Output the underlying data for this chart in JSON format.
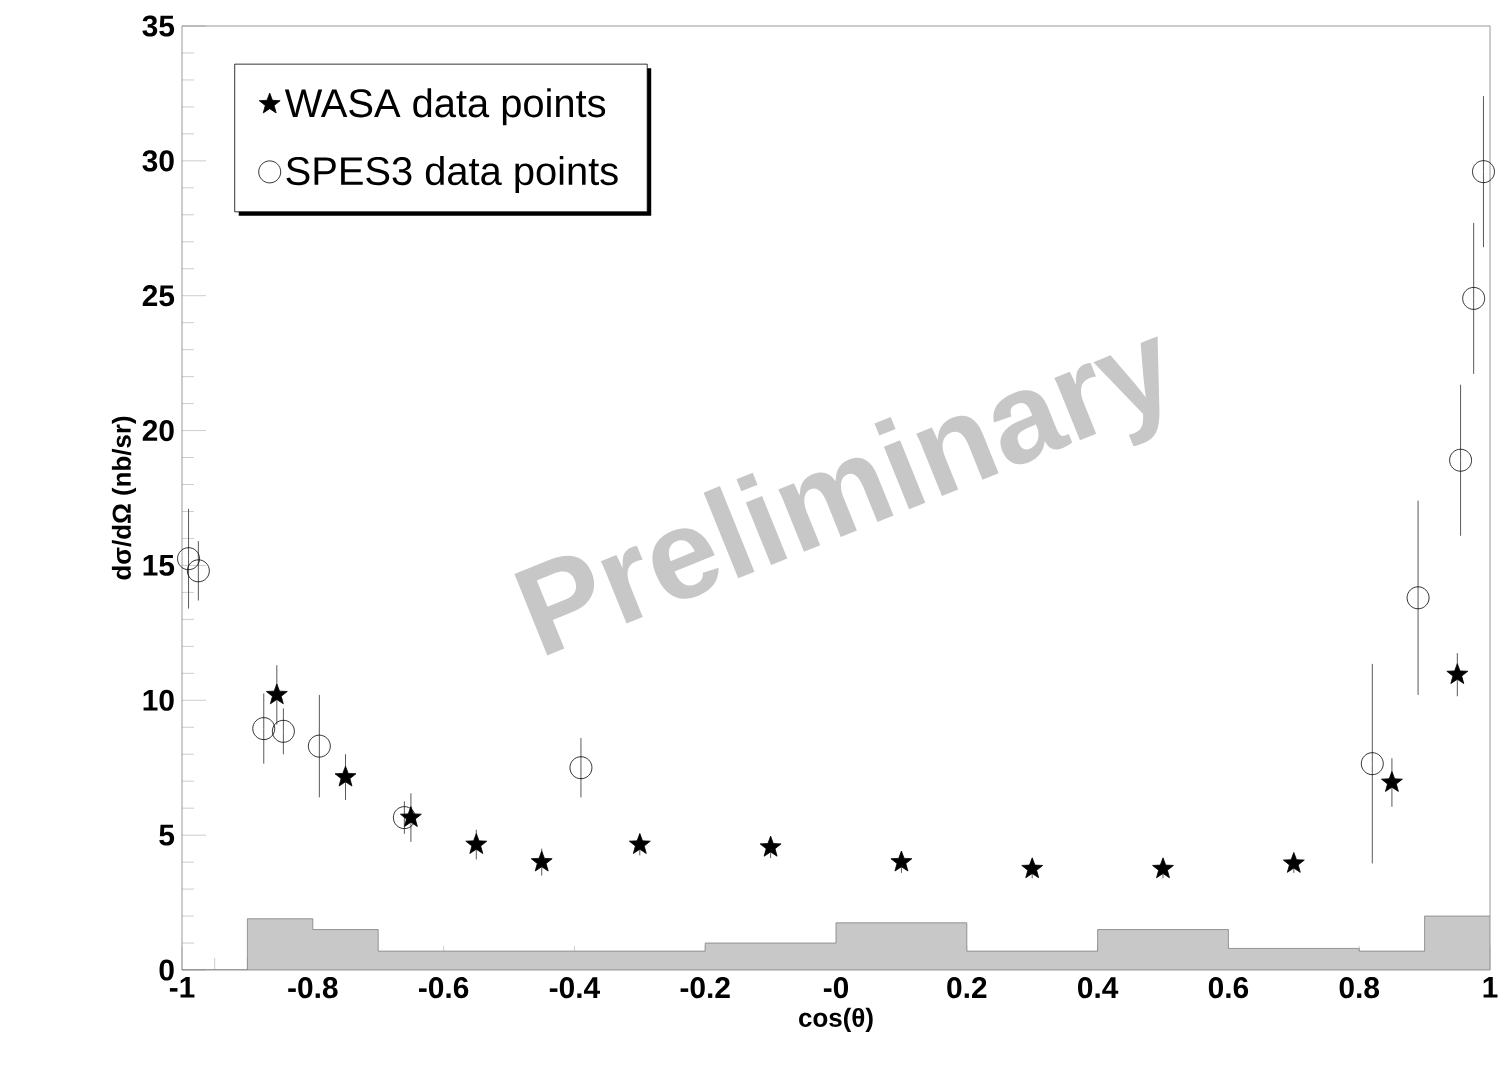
{
  "chart_data": {
    "type": "scatter",
    "xlabel": "cos(θ)",
    "ylabel": "dσ/dΩ  (nb/sr)",
    "xlim": [
      -1,
      1
    ],
    "ylim": [
      0,
      35
    ],
    "xticks": [
      -1,
      -0.8,
      -0.6,
      -0.4,
      -0.2,
      {
        "value": 0,
        "label": "-0"
      },
      0.2,
      0.4,
      0.6,
      0.8,
      1
    ],
    "yticks": [
      0,
      5,
      10,
      15,
      20,
      25,
      30,
      35
    ],
    "grid": false,
    "legend": "top left",
    "annotations": [
      "Preliminary"
    ],
    "series": [
      {
        "type": "histogram",
        "color": "#c8c8c8",
        "bins": [
          -1,
          -0.9,
          -0.8,
          -0.7,
          -0.2,
          0,
          0.2,
          0.4,
          0.6,
          0.8,
          0.9,
          1
        ],
        "values": [
          0,
          1.9,
          1.5,
          0.7,
          1.0,
          1.75,
          0.7,
          1.5,
          0.8,
          0.7,
          2.0
        ]
      },
      {
        "name": "WASA data points",
        "color": "#000000",
        "marker": "star",
        "x": [
          -0.855,
          -0.75,
          -0.65,
          -0.55,
          -0.45,
          -0.3,
          -0.1,
          0.1,
          0.3,
          0.5,
          0.7,
          0.85,
          0.95
        ],
        "values": [
          10.2,
          7.15,
          5.65,
          4.65,
          4.0,
          4.65,
          4.55,
          4.0,
          3.75,
          3.75,
          3.95,
          6.95,
          10.95
        ],
        "errors": [
          1.1,
          0.85,
          0.9,
          0.55,
          0.5,
          0.4,
          0.4,
          0.4,
          0.35,
          0.35,
          0.35,
          0.9,
          0.8
        ]
      },
      {
        "name": "SPES3 data points",
        "color": "#000000",
        "marker": "circle",
        "x": [
          -0.99,
          -0.975,
          -0.875,
          -0.845,
          -0.79,
          -0.66,
          -0.39,
          0.82,
          0.89,
          0.955,
          0.975,
          0.99
        ],
        "values": [
          15.25,
          14.8,
          8.95,
          8.85,
          8.3,
          5.65,
          7.5,
          7.65,
          13.8,
          18.9,
          24.9,
          29.6
        ],
        "errors": [
          1.85,
          1.1,
          1.3,
          0.85,
          1.9,
          0.6,
          1.1,
          3.7,
          3.6,
          2.8,
          2.8,
          2.8
        ]
      }
    ]
  }
}
